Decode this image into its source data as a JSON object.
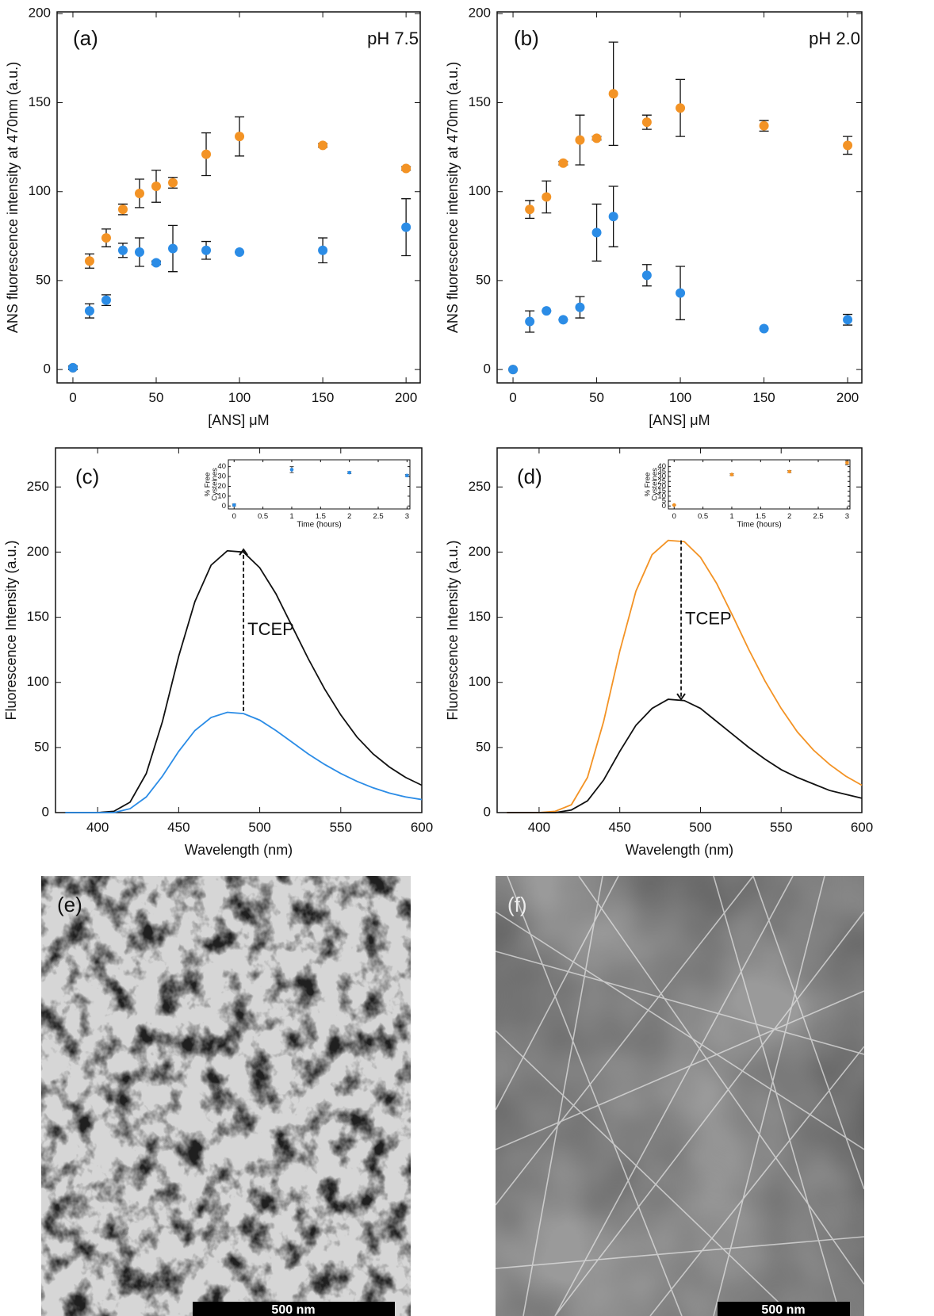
{
  "chart_data": [
    {
      "type": "scatter",
      "panel_label": "(a)",
      "note": "pH 7.5",
      "xlabel": "[ANS] μM",
      "ylabel": "ANS fluorescence intensity at 470nm (a.u.)",
      "xlim": [
        -9.5,
        208.5
      ],
      "ylim": [
        -7.5,
        201
      ],
      "xticks": [
        0,
        50,
        100,
        150,
        200
      ],
      "yticks": [
        0,
        50,
        100,
        150,
        200
      ],
      "x": [
        0,
        10,
        20,
        30,
        40,
        50,
        60,
        80,
        100,
        150,
        200
      ],
      "series": [
        {
          "color": "#f39325",
          "values": [
            1,
            61,
            74,
            90,
            99,
            103,
            105,
            121,
            131,
            126,
            113
          ],
          "errors": [
            1,
            4,
            5,
            3,
            8,
            9,
            3,
            12,
            11,
            1,
            1
          ]
        },
        {
          "color": "#2b8ce6",
          "values": [
            1,
            33,
            39,
            67,
            66,
            60,
            68,
            67,
            66,
            67,
            80
          ],
          "errors": [
            1,
            4,
            3,
            4,
            8,
            1,
            13,
            5,
            0,
            7,
            16
          ]
        }
      ]
    },
    {
      "type": "scatter",
      "panel_label": "(b)",
      "note": "pH 2.0",
      "xlabel": "[ANS] μM",
      "ylabel": "ANS fluorescence intensity at 470nm (a.u.)",
      "xlim": [
        -9.5,
        208.5
      ],
      "ylim": [
        -7.5,
        201
      ],
      "xticks": [
        0,
        50,
        100,
        150,
        200
      ],
      "yticks": [
        0,
        50,
        100,
        150,
        200
      ],
      "x": [
        0,
        10,
        20,
        30,
        40,
        50,
        60,
        80,
        100,
        150,
        200
      ],
      "series": [
        {
          "color": "#f39325",
          "values": [
            0,
            90,
            97,
            116,
            129,
            130,
            155,
            139,
            147,
            137,
            126
          ],
          "errors": [
            0,
            5,
            9,
            1,
            14,
            1,
            29,
            4,
            16,
            3,
            5
          ]
        },
        {
          "color": "#2b8ce6",
          "values": [
            0,
            27,
            33,
            28,
            35,
            77,
            86,
            53,
            43,
            23,
            28
          ],
          "errors": [
            0,
            6,
            0,
            0,
            6,
            16,
            17,
            6,
            15,
            0,
            3
          ]
        }
      ]
    },
    {
      "type": "line",
      "panel_label": "(c)",
      "xlabel": "Wavelength (nm)",
      "ylabel": "Fluorescence Intensity (a.u.)",
      "xlim": [
        374,
        600
      ],
      "ylim": [
        0,
        280
      ],
      "xticks": [
        400,
        450,
        500,
        550,
        600
      ],
      "yticks": [
        0,
        50,
        100,
        150,
        200,
        250
      ],
      "x": [
        380,
        390,
        400,
        410,
        420,
        430,
        440,
        450,
        460,
        470,
        480,
        490,
        500,
        510,
        520,
        530,
        540,
        550,
        560,
        570,
        580,
        590,
        600
      ],
      "series": [
        {
          "color": "#111111",
          "values": [
            0,
            0,
            0,
            1,
            8,
            30,
            70,
            120,
            162,
            190,
            201,
            200,
            188,
            168,
            143,
            118,
            95,
            75,
            58,
            45,
            35,
            27,
            21
          ]
        },
        {
          "color": "#2b8ce6",
          "values": [
            0,
            0,
            0,
            0,
            3,
            12,
            28,
            47,
            63,
            73,
            77,
            76,
            71,
            63,
            54,
            45,
            37,
            30,
            24,
            19,
            15,
            12,
            10
          ]
        }
      ],
      "annotation": {
        "text": "TCEP",
        "x": 490,
        "y_from": 78,
        "y_to": 202
      }
    },
    {
      "type": "scatter",
      "xlabel": "Time (hours)",
      "ylabel": [
        "% Free",
        "Cysteines"
      ],
      "xlim": [
        -0.1,
        3.05
      ],
      "ylim": [
        -3,
        47
      ],
      "xticks": [
        0,
        0.5,
        1,
        1.5,
        2,
        2.5,
        3
      ],
      "yticks": [
        0,
        10,
        20,
        30,
        40
      ],
      "x": [
        0,
        1,
        2,
        3
      ],
      "series": [
        {
          "color": "#2b8ce6",
          "values": [
            1,
            37,
            34,
            31
          ],
          "errors": [
            1,
            3,
            1,
            1
          ]
        }
      ]
    },
    {
      "type": "line",
      "panel_label": "(d)",
      "xlabel": "Wavelength (nm)",
      "ylabel": "Fluorescence Intensity (a.u.)",
      "xlim": [
        374,
        600
      ],
      "ylim": [
        0,
        280
      ],
      "xticks": [
        400,
        450,
        500,
        550,
        600
      ],
      "yticks": [
        0,
        50,
        100,
        150,
        200,
        250
      ],
      "x": [
        380,
        390,
        400,
        410,
        420,
        430,
        440,
        450,
        460,
        470,
        480,
        490,
        500,
        510,
        520,
        530,
        540,
        550,
        560,
        570,
        580,
        590,
        600
      ],
      "series": [
        {
          "color": "#f39325",
          "values": [
            0,
            0,
            0,
            1,
            6,
            27,
            70,
            124,
            170,
            198,
            209,
            208,
            196,
            176,
            151,
            125,
            101,
            80,
            62,
            48,
            37,
            28,
            21
          ]
        },
        {
          "color": "#111111",
          "values": [
            0,
            0,
            0,
            0,
            2,
            9,
            25,
            47,
            67,
            80,
            87,
            86,
            80,
            70,
            60,
            50,
            41,
            33,
            27,
            22,
            17,
            14,
            11
          ]
        }
      ],
      "annotation": {
        "text": "TCEP",
        "x": 488,
        "y_from": 209,
        "y_to": 87
      }
    },
    {
      "type": "scatter",
      "xlabel": "Time (hours)",
      "ylabel": [
        "% Free",
        "Cysteines"
      ],
      "xlim": [
        -0.1,
        3.05
      ],
      "ylim": [
        -3,
        47
      ],
      "xticks": [
        0,
        0.5,
        1,
        1.5,
        2,
        2.5,
        3
      ],
      "yticks": [
        0,
        5,
        10,
        15,
        20,
        25,
        30,
        35,
        40
      ],
      "x": [
        0,
        1,
        2,
        3
      ],
      "series": [
        {
          "color": "#f39325",
          "values": [
            1,
            32,
            35,
            44
          ],
          "errors": [
            0,
            1,
            1,
            2
          ]
        }
      ]
    }
  ],
  "images": [
    {
      "panel_label": "(e)",
      "scale_bar": "500 nm"
    },
    {
      "panel_label": "(f)",
      "scale_bar": "500 nm"
    }
  ]
}
